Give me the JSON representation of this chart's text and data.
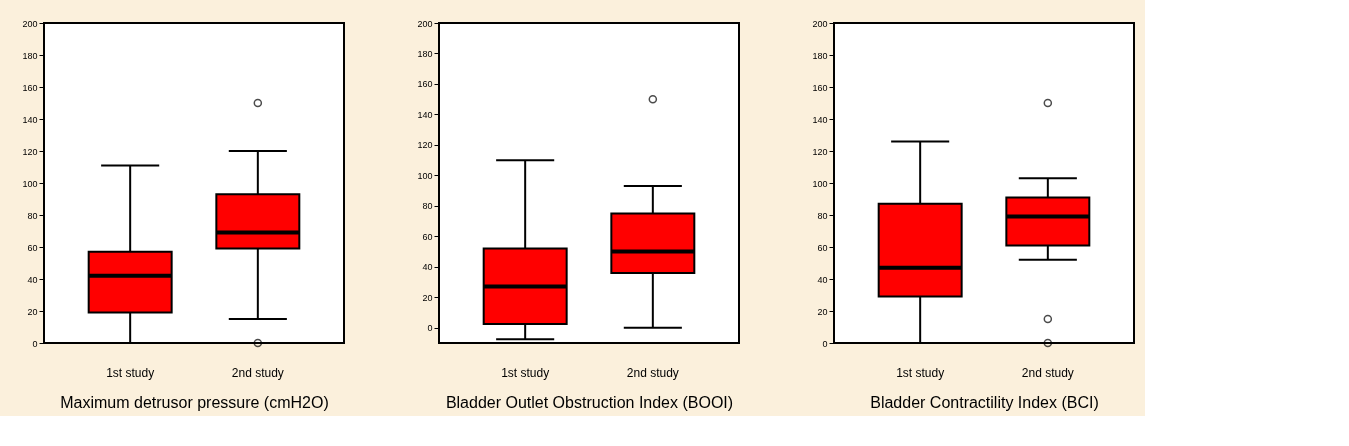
{
  "chart_data": [
    {
      "type": "box",
      "xlabel": "Maximum detrusor pressure (cmH2O)",
      "categories": [
        "1st study",
        "2nd study"
      ],
      "color": "#ff0000",
      "ylim": [
        0,
        200
      ],
      "yticks": [
        0,
        20,
        40,
        60,
        80,
        100,
        120,
        140,
        160,
        180,
        200
      ],
      "grid": false,
      "boxes": [
        {
          "low": 0,
          "q1": 19,
          "median": 42,
          "q3": 57,
          "high": 111
        },
        {
          "low": 15,
          "q1": 59,
          "median": 69,
          "q3": 93,
          "high": 120,
          "outliers": [
            150,
            0
          ]
        }
      ]
    },
    {
      "type": "box",
      "xlabel": "Bladder Outlet Obstruction Index (BOOI)",
      "categories": [
        "1st study",
        "2nd study"
      ],
      "color": "#ff0000",
      "ylim": [
        -10,
        200
      ],
      "yticks": [
        0,
        20,
        40,
        60,
        80,
        100,
        120,
        140,
        160,
        180,
        200
      ],
      "grid": false,
      "boxes": [
        {
          "low": -7.5,
          "q1": 2.5,
          "median": 27,
          "q3": 52,
          "high": 110
        },
        {
          "low": 0,
          "q1": 36,
          "median": 50,
          "q3": 75,
          "high": 93,
          "outliers": [
            150
          ]
        }
      ]
    },
    {
      "type": "box",
      "xlabel": "Bladder Contractility Index (BCI)",
      "categories": [
        "1st study",
        "2nd study"
      ],
      "color": "#ff0000",
      "ylim": [
        0,
        200
      ],
      "yticks": [
        0,
        20,
        40,
        60,
        80,
        100,
        120,
        140,
        160,
        180,
        200
      ],
      "grid": false,
      "boxes": [
        {
          "low": 0,
          "q1": 29,
          "median": 47,
          "q3": 87,
          "high": 126
        },
        {
          "low": 52,
          "q1": 61,
          "median": 79,
          "q3": 91,
          "high": 103,
          "outliers": [
            150,
            15,
            0
          ]
        }
      ]
    }
  ]
}
